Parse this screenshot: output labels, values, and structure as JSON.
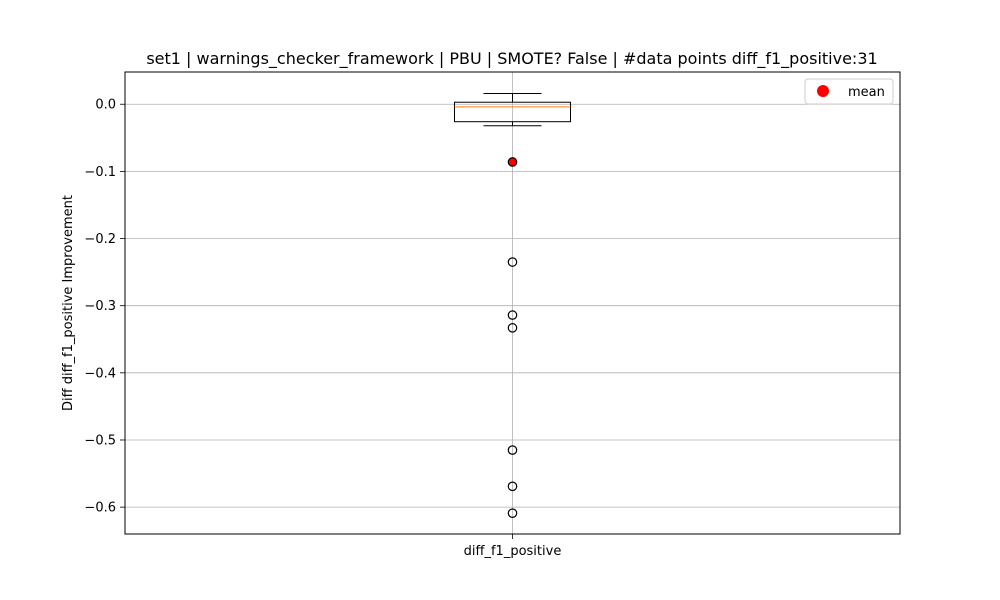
{
  "chart_data": {
    "type": "box",
    "title": "set1 | warnings_checker_framework | PBU | SMOTE? False | #data points diff_f1_positive:31",
    "xlabel": "",
    "ylabel": "Diff diff_f1_positive Improvement",
    "categories": [
      "diff_f1_positive"
    ],
    "ylim": [
      -0.64,
      0.048
    ],
    "yticks": [
      0.0,
      -0.1,
      -0.2,
      -0.3,
      -0.4,
      -0.5,
      -0.6
    ],
    "ytick_labels": [
      "0.0",
      "−0.1",
      "−0.2",
      "−0.3",
      "−0.4",
      "−0.5",
      "−0.6"
    ],
    "grid": true,
    "box": {
      "whisker_low": -0.032,
      "q1": -0.026,
      "median": -0.004,
      "q3": 0.003,
      "whisker_high": 0.016,
      "outliers": [
        -0.086,
        -0.235,
        -0.314,
        -0.333,
        -0.515,
        -0.569,
        -0.609
      ]
    },
    "mean": -0.086,
    "legend": {
      "position": "top-right",
      "entries": [
        "mean"
      ]
    },
    "colors": {
      "median": "#ff7f0e",
      "mean": "#ff0000",
      "grid": "#b0b0b0",
      "box": "#000000"
    }
  }
}
